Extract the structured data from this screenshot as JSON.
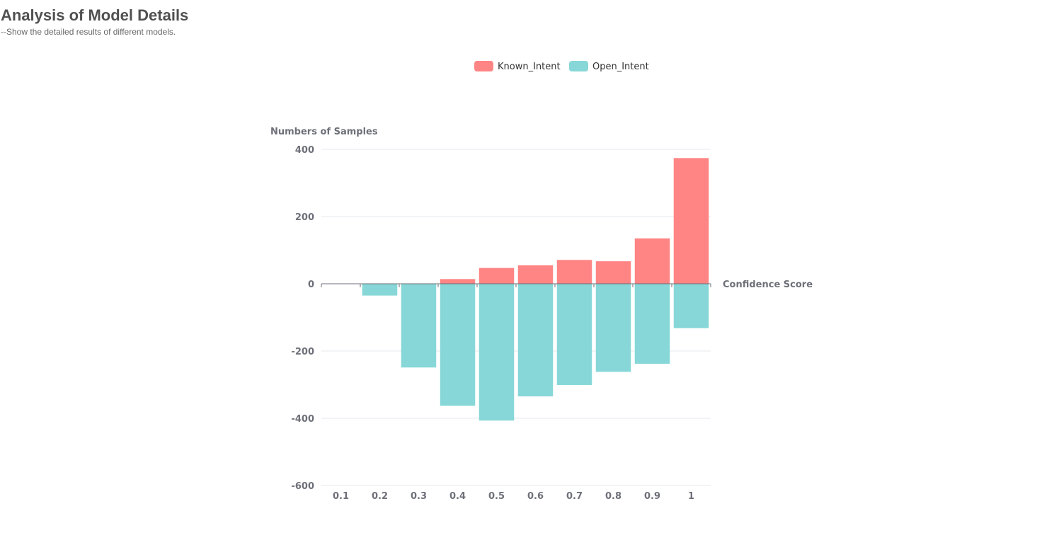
{
  "page": {
    "title": "Analysis of Model Details",
    "subtitle": "--Show the detailed results of different models."
  },
  "chart_data": {
    "type": "bar",
    "categories": [
      "0.1",
      "0.2",
      "0.3",
      "0.4",
      "0.5",
      "0.6",
      "0.7",
      "0.8",
      "0.9",
      "1"
    ],
    "series": [
      {
        "name": "Known_Intent",
        "color": "#ff8484",
        "values": [
          0,
          0,
          0,
          14,
          47,
          55,
          71,
          67,
          135,
          374
        ]
      },
      {
        "name": "Open_Intent",
        "color": "#87d7d8",
        "values": [
          0,
          -35,
          -249,
          -363,
          -407,
          -335,
          -301,
          -262,
          -238,
          -132
        ]
      }
    ],
    "xlabel": "Confidence Score",
    "ylabel": "Numbers of Samples",
    "ylim": [
      -600,
      400
    ],
    "yticks": [
      -600,
      -400,
      -200,
      0,
      200,
      400
    ],
    "stacked": true,
    "grid": true,
    "legend_position": "top"
  }
}
